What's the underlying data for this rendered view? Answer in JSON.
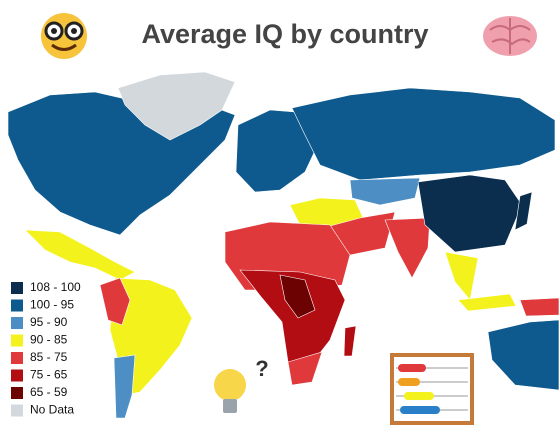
{
  "header": {
    "title": "Average IQ by country"
  },
  "legend": {
    "items": [
      {
        "label": "108 - 100",
        "color": "#0b2e4e"
      },
      {
        "label": "100 - 95",
        "color": "#0e5a8e"
      },
      {
        "label": "95 - 90",
        "color": "#4d8fc4"
      },
      {
        "label": "90 - 85",
        "color": "#f4f21c"
      },
      {
        "label": "85 - 75",
        "color": "#e0393c"
      },
      {
        "label": "75 - 65",
        "color": "#b30d14"
      },
      {
        "label": "65 - 59",
        "color": "#6c0202"
      },
      {
        "label": "No Data",
        "color": "#d3d8dd"
      }
    ]
  },
  "annotation": "?"
}
